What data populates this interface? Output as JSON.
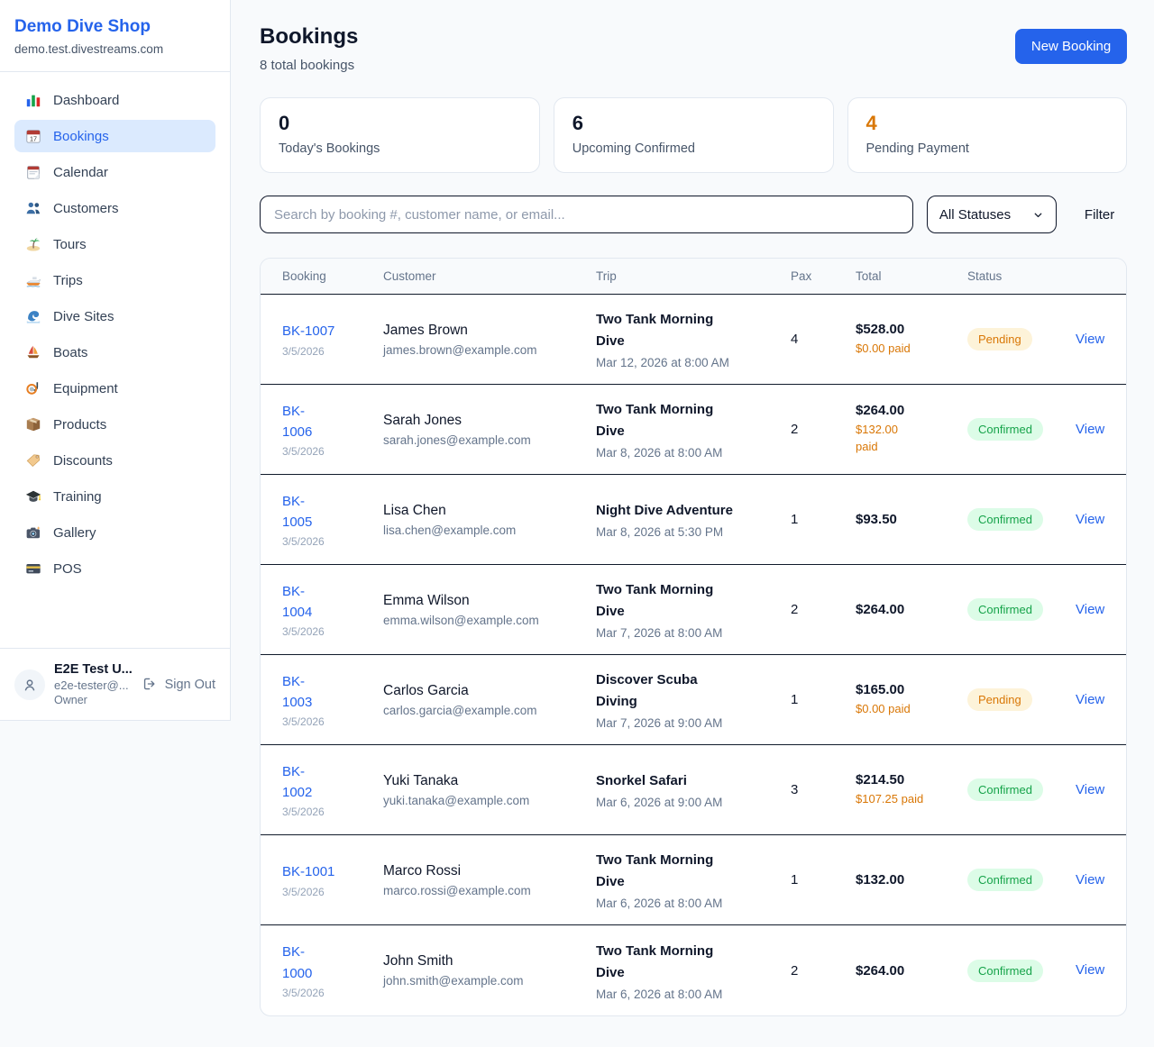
{
  "brand": {
    "name": "Demo Dive Shop",
    "domain": "demo.test.divestreams.com"
  },
  "sidebar": {
    "items": [
      {
        "icon": "bar-chart-icon",
        "label": "Dashboard",
        "active": false
      },
      {
        "icon": "calendar-icon",
        "label": "Bookings",
        "active": true
      },
      {
        "icon": "tear-calendar-icon",
        "label": "Calendar",
        "active": false
      },
      {
        "icon": "people-icon",
        "label": "Customers",
        "active": false
      },
      {
        "icon": "island-icon",
        "label": "Tours",
        "active": false
      },
      {
        "icon": "speedboat-icon",
        "label": "Trips",
        "active": false
      },
      {
        "icon": "wave-icon",
        "label": "Dive Sites",
        "active": false
      },
      {
        "icon": "sailboat-icon",
        "label": "Boats",
        "active": false
      },
      {
        "icon": "snorkel-icon",
        "label": "Equipment",
        "active": false
      },
      {
        "icon": "package-icon",
        "label": "Products",
        "active": false
      },
      {
        "icon": "tag-icon",
        "label": "Discounts",
        "active": false
      },
      {
        "icon": "grad-cap-icon",
        "label": "Training",
        "active": false
      },
      {
        "icon": "camera-icon",
        "label": "Gallery",
        "active": false
      },
      {
        "icon": "credit-card-icon",
        "label": "POS",
        "active": false
      }
    ]
  },
  "user": {
    "name": "E2E Test U...",
    "email": "e2e-tester@...",
    "role": "Owner",
    "sign_out_label": "Sign Out"
  },
  "header": {
    "title": "Bookings",
    "subtitle": "8 total bookings",
    "new_booking_label": "New Booking"
  },
  "stats": [
    {
      "value": "0",
      "label": "Today's Bookings",
      "color": "#0f172a"
    },
    {
      "value": "6",
      "label": "Upcoming Confirmed",
      "color": "#0f172a"
    },
    {
      "value": "4",
      "label": "Pending Payment",
      "color": "#d97706"
    }
  ],
  "filters": {
    "search_placeholder": "Search by booking #, customer name, or email...",
    "status_selected": "All Statuses",
    "filter_label": "Filter"
  },
  "table": {
    "columns": [
      "Booking",
      "Customer",
      "Trip",
      "Pax",
      "Total",
      "Status"
    ],
    "rows": [
      {
        "id": "BK-1007",
        "date": "3/5/2026",
        "customer": "James Brown",
        "email": "james.brown@example.com",
        "trip": "Two Tank Morning Dive",
        "trip_time": "Mar 12, 2026 at 8:00 AM",
        "pax": "4",
        "total": "$528.00",
        "paid": "$0.00 paid",
        "status": "Pending",
        "view_label": "View"
      },
      {
        "id": "BK-\n1006",
        "date": "3/5/2026",
        "customer": "Sarah Jones",
        "email": "sarah.jones@example.com",
        "trip": "Two Tank Morning Dive",
        "trip_time": "Mar 8, 2026 at 8:00 AM",
        "pax": "2",
        "total": "$264.00",
        "paid": "$132.00\npaid",
        "status": "Confirmed",
        "view_label": "View"
      },
      {
        "id": "BK-\n1005",
        "date": "3/5/2026",
        "customer": "Lisa Chen",
        "email": "lisa.chen@example.com",
        "trip": "Night Dive Adventure",
        "trip_time": "Mar 8, 2026 at 5:30 PM",
        "pax": "1",
        "total": "$93.50",
        "paid": "",
        "status": "Confirmed",
        "view_label": "View"
      },
      {
        "id": "BK-\n1004",
        "date": "3/5/2026",
        "customer": "Emma Wilson",
        "email": "emma.wilson@example.com",
        "trip": "Two Tank Morning Dive",
        "trip_time": "Mar 7, 2026 at 8:00 AM",
        "pax": "2",
        "total": "$264.00",
        "paid": "",
        "status": "Confirmed",
        "view_label": "View"
      },
      {
        "id": "BK-\n1003",
        "date": "3/5/2026",
        "customer": "Carlos Garcia",
        "email": "carlos.garcia@example.com",
        "trip": "Discover Scuba Diving",
        "trip_time": "Mar 7, 2026 at 9:00 AM",
        "pax": "1",
        "total": "$165.00",
        "paid": "$0.00 paid",
        "status": "Pending",
        "view_label": "View"
      },
      {
        "id": "BK-\n1002",
        "date": "3/5/2026",
        "customer": "Yuki Tanaka",
        "email": "yuki.tanaka@example.com",
        "trip": "Snorkel Safari",
        "trip_time": "Mar 6, 2026 at 9:00 AM",
        "pax": "3",
        "total": "$214.50",
        "paid": "$107.25 paid",
        "status": "Confirmed",
        "view_label": "View"
      },
      {
        "id": "BK-1001",
        "date": "3/5/2026",
        "customer": "Marco Rossi",
        "email": "marco.rossi@example.com",
        "trip": "Two Tank Morning Dive",
        "trip_time": "Mar 6, 2026 at 8:00 AM",
        "pax": "1",
        "total": "$132.00",
        "paid": "",
        "status": "Confirmed",
        "view_label": "View"
      },
      {
        "id": "BK-\n1000",
        "date": "3/5/2026",
        "customer": "John Smith",
        "email": "john.smith@example.com",
        "trip": "Two Tank Morning Dive",
        "trip_time": "Mar 6, 2026 at 8:00 AM",
        "pax": "2",
        "total": "$264.00",
        "paid": "",
        "status": "Confirmed",
        "view_label": "View"
      }
    ]
  },
  "colors": {
    "accent_blue": "#2563eb",
    "paid_orange": "#d97706",
    "status": {
      "Pending": {
        "bg": "#fdf3d9",
        "text": "#d97706"
      },
      "Confirmed": {
        "bg": "#dcfce7",
        "text": "#16a34a"
      }
    }
  }
}
